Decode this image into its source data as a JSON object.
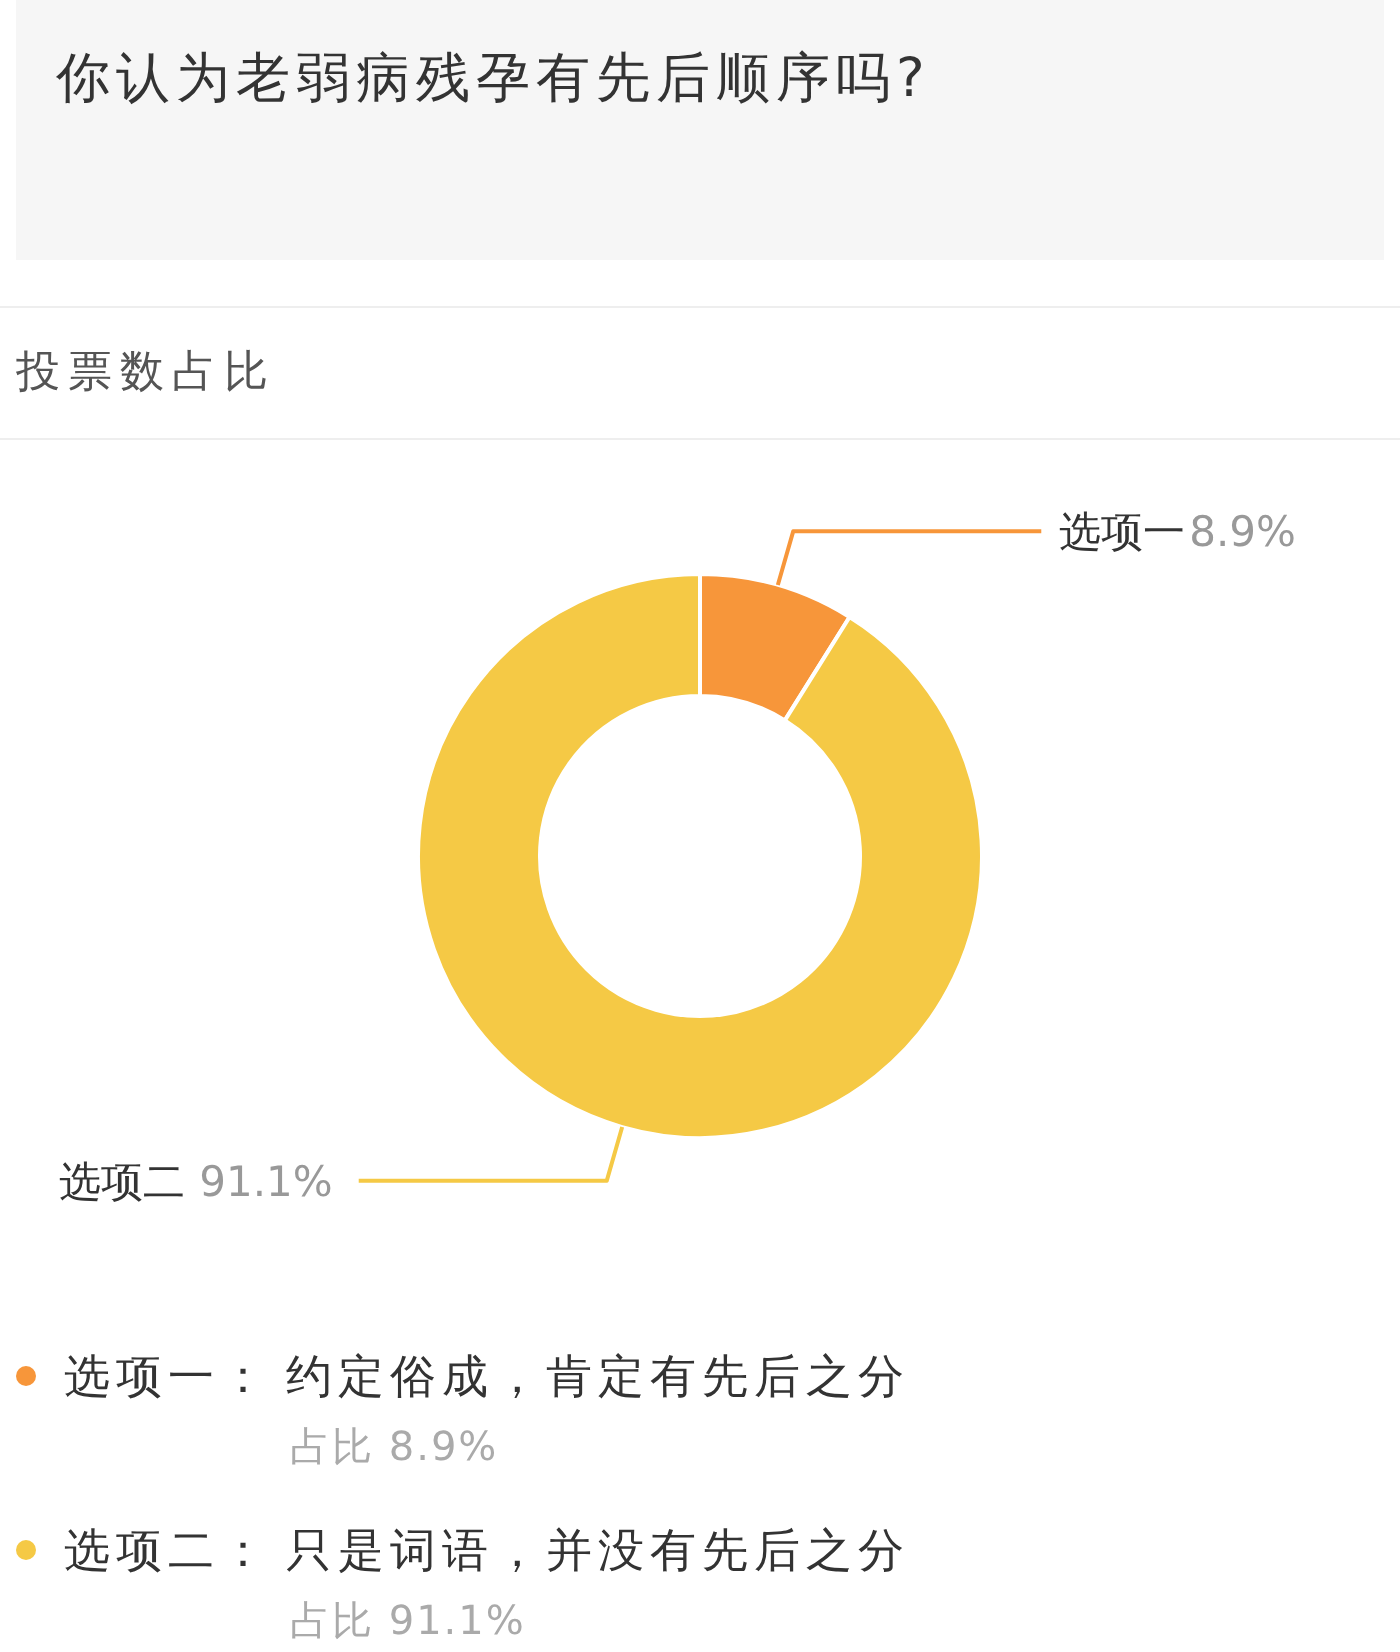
{
  "chart_data": {
    "type": "donut",
    "title": "你认为老弱病残孕有先后顺序吗?",
    "subtitle": "投票数占比",
    "categories": [
      "选项一",
      "选项二"
    ],
    "values": [
      8.9,
      91.1
    ],
    "colors": [
      "#f7963a",
      "#f5c945"
    ],
    "value_labels": [
      "8.9%",
      "91.1%"
    ],
    "annotations": [
      "：",
      "约定俗成，肯定有先后之分",
      "只是词语，并没有先后之分",
      "占比"
    ],
    "legend": "bottom"
  }
}
